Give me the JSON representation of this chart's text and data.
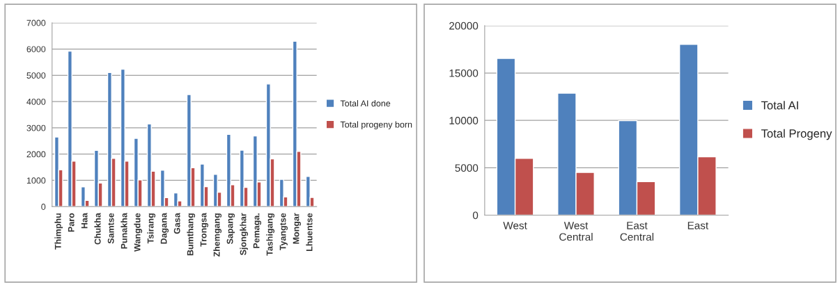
{
  "chart_data": [
    {
      "type": "bar",
      "categories": [
        "Thimphu",
        "Paro",
        "Haa",
        "Chukha",
        "Samtse",
        "Punakha",
        "Wangdue",
        "Tsirang",
        "Dagana",
        "Gasa",
        "Bumthang",
        "Trongsa",
        "Zhemgang",
        "Sapang",
        "Sjongkhar",
        "Pemaga.",
        "Tashigang",
        "Tyangtse",
        "Mongar",
        "Lhuentse"
      ],
      "series": [
        {
          "name": "Total AI done",
          "color": "#4f81bd",
          "values": [
            2650,
            5920,
            750,
            2140,
            5110,
            5230,
            2600,
            3150,
            1390,
            520,
            4270,
            1620,
            1230,
            2750,
            2150,
            2690,
            4670,
            1040,
            6300,
            1150
          ]
        },
        {
          "name": "Total progeny born",
          "color": "#c0504d",
          "values": [
            1400,
            1730,
            240,
            900,
            1840,
            1730,
            1020,
            1350,
            340,
            220,
            1480,
            760,
            550,
            830,
            730,
            940,
            1820,
            370,
            2100,
            350
          ]
        }
      ],
      "ylim": [
        0,
        7000
      ],
      "yticks": [
        0,
        1000,
        2000,
        3000,
        4000,
        5000,
        6000,
        7000
      ],
      "grid": "y",
      "legend": "right"
    },
    {
      "type": "bar",
      "categories": [
        "West",
        "West\nCentral",
        "East\nCentral",
        "East"
      ],
      "series": [
        {
          "name": "Total AI",
          "color": "#4f81bd",
          "values": [
            16550,
            12880,
            9970,
            18020
          ]
        },
        {
          "name": "Total Progeny",
          "color": "#c0504d",
          "values": [
            5990,
            4520,
            3530,
            6160
          ]
        }
      ],
      "ylim": [
        0,
        20000
      ],
      "yticks": [
        0,
        5000,
        10000,
        15000,
        20000
      ],
      "grid": "y",
      "legend": "right"
    }
  ]
}
